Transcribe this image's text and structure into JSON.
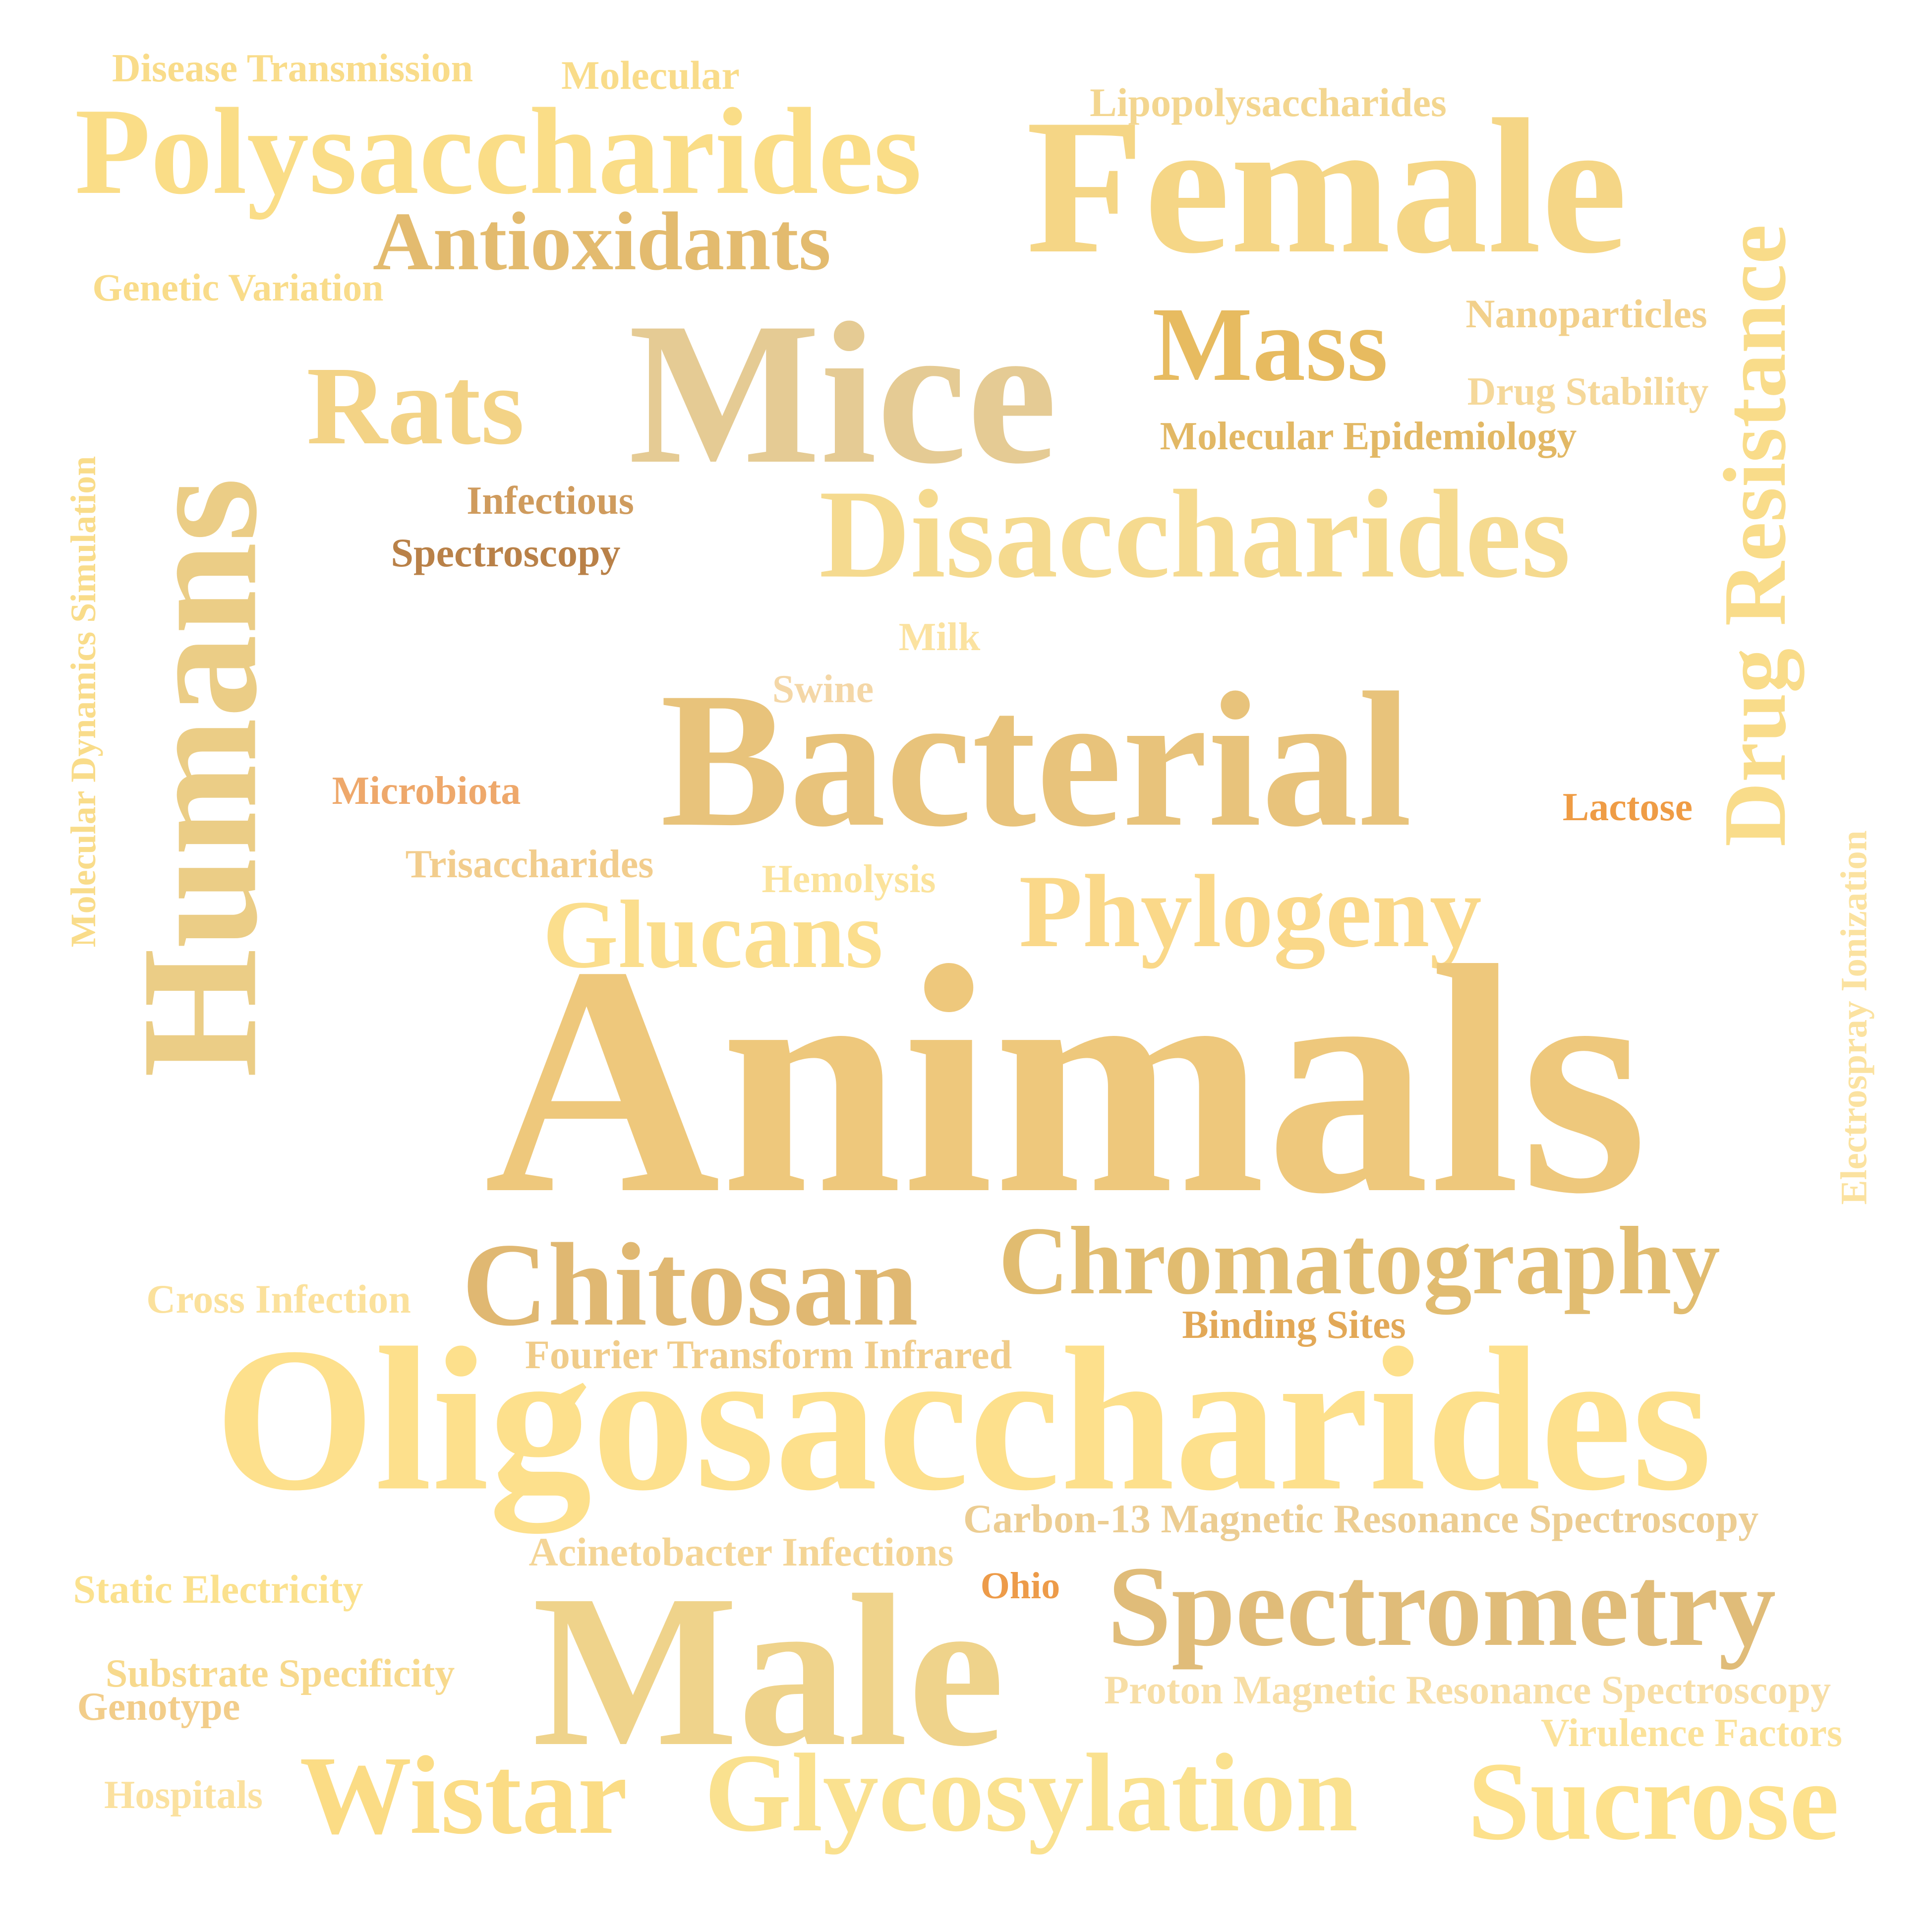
{
  "title": "Word cloud",
  "words": [
    {
      "text": "Disease Transmission",
      "color": "#f9dc8a"
    },
    {
      "text": "Molecular",
      "color": "#f9dc8a"
    },
    {
      "text": "Lipopolysaccharides",
      "color": "#f3d690"
    },
    {
      "text": "Polysaccharides",
      "color": "#fadd87"
    },
    {
      "text": "Female",
      "color": "#f5d686"
    },
    {
      "text": "Antioxidants",
      "color": "#e3bb6f"
    },
    {
      "text": "Genetic Variation",
      "color": "#f9dc8a"
    },
    {
      "text": "Mass",
      "color": "#e7bb60"
    },
    {
      "text": "Nanoparticles",
      "color": "#f2d08b"
    },
    {
      "text": "Drug Resistance",
      "color": "#f9dc8a"
    },
    {
      "text": "Rats",
      "color": "#f3d386"
    },
    {
      "text": "Mice",
      "color": "#e5cb94"
    },
    {
      "text": "Drug Stability",
      "color": "#f5d89a"
    },
    {
      "text": "Molecular Epidemiology",
      "color": "#e2b865"
    },
    {
      "text": "Humans",
      "color": "#ebcd86"
    },
    {
      "text": "Molecular Dynamics Simulation",
      "color": "#f9dc8a"
    },
    {
      "text": "Infectious",
      "color": "#cf9b5d"
    },
    {
      "text": "Spectroscopy",
      "color": "#b98148"
    },
    {
      "text": "Disaccharides",
      "color": "#f5da8f"
    },
    {
      "text": "Milk",
      "color": "#fbe2a0"
    },
    {
      "text": "Swine",
      "color": "#f4d7a7"
    },
    {
      "text": "Bacterial",
      "color": "#e8c37b"
    },
    {
      "text": "Microbiota",
      "color": "#eea86b"
    },
    {
      "text": "Lactose",
      "color": "#ef9c45"
    },
    {
      "text": "Trisaccharides",
      "color": "#f2cd8d"
    },
    {
      "text": "Hemolysis",
      "color": "#fbe39c"
    },
    {
      "text": "Phylogeny",
      "color": "#fad889"
    },
    {
      "text": "Glucans",
      "color": "#fbde8d"
    },
    {
      "text": "Electrospray Ionization",
      "color": "#fbe2a0"
    },
    {
      "text": "Animals",
      "color": "#eec87c"
    },
    {
      "text": "Chromatography",
      "color": "#e1bc70"
    },
    {
      "text": "Chitosan",
      "color": "#e0b872"
    },
    {
      "text": "Cross Infection",
      "color": "#fbe19c"
    },
    {
      "text": "Binding Sites",
      "color": "#e2a857"
    },
    {
      "text": "Fourier Transform Infrared",
      "color": "#f0cc8a"
    },
    {
      "text": "Oligosaccharides",
      "color": "#fde08c"
    },
    {
      "text": "Carbon-13 Magnetic Resonance Spectroscopy",
      "color": "#eccd92"
    },
    {
      "text": "Acinetobacter Infections",
      "color": "#f4d596"
    },
    {
      "text": "Static Electricity",
      "color": "#fbe18e"
    },
    {
      "text": "Ohio",
      "color": "#ed9b49"
    },
    {
      "text": "Male",
      "color": "#efd38b"
    },
    {
      "text": "Spectrometry",
      "color": "#e0bc79"
    },
    {
      "text": "Substrate Specificity",
      "color": "#f7d98d"
    },
    {
      "text": "Genotype",
      "color": "#f2cd8a"
    },
    {
      "text": "Proton Magnetic Resonance Spectroscopy",
      "color": "#f7dea6"
    },
    {
      "text": "Virulence Factors",
      "color": "#fbe29a"
    },
    {
      "text": "Hospitals",
      "color": "#fbe19f"
    },
    {
      "text": "Wistar",
      "color": "#fbdc85"
    },
    {
      "text": "Glycosylation",
      "color": "#fae18f"
    },
    {
      "text": "Sucrose",
      "color": "#fde18c"
    }
  ]
}
